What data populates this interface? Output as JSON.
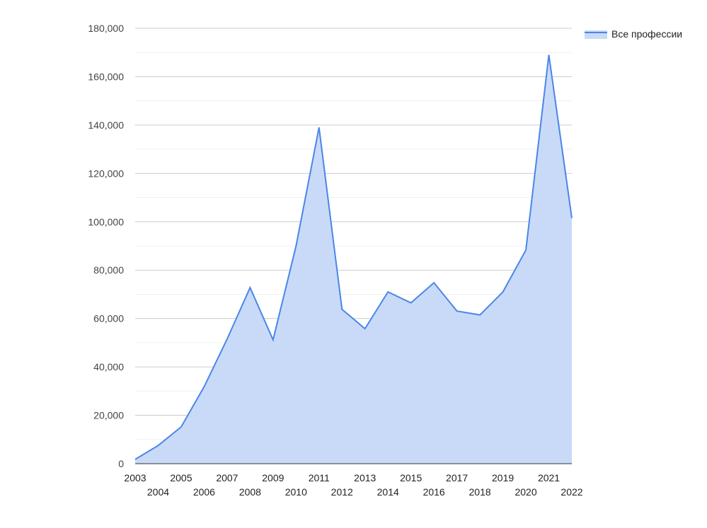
{
  "chart_data": {
    "type": "area",
    "x": [
      "2003",
      "2004",
      "2005",
      "2006",
      "2007",
      "2008",
      "2009",
      "2010",
      "2011",
      "2012",
      "2013",
      "2014",
      "2015",
      "2016",
      "2017",
      "2018",
      "2019",
      "2020",
      "2021",
      "2022"
    ],
    "series": [
      {
        "name": "Все профессии",
        "values": [
          1800,
          7500,
          15200,
          31800,
          51500,
          72800,
          51200,
          90000,
          139000,
          63800,
          55800,
          71000,
          66500,
          74800,
          63100,
          61500,
          71000,
          88300,
          169000,
          101500
        ],
        "line_color": "#4a86e8",
        "fill_color": "#c9daf8"
      }
    ],
    "title": "",
    "xlabel": "",
    "ylabel": "",
    "ylim": [
      0,
      180000
    ],
    "y_ticks": [
      "0",
      "20,000",
      "40,000",
      "60,000",
      "80,000",
      "100,000",
      "120,000",
      "140,000",
      "160,000",
      "180,000"
    ],
    "grid": true,
    "legend_position": "top-right"
  }
}
